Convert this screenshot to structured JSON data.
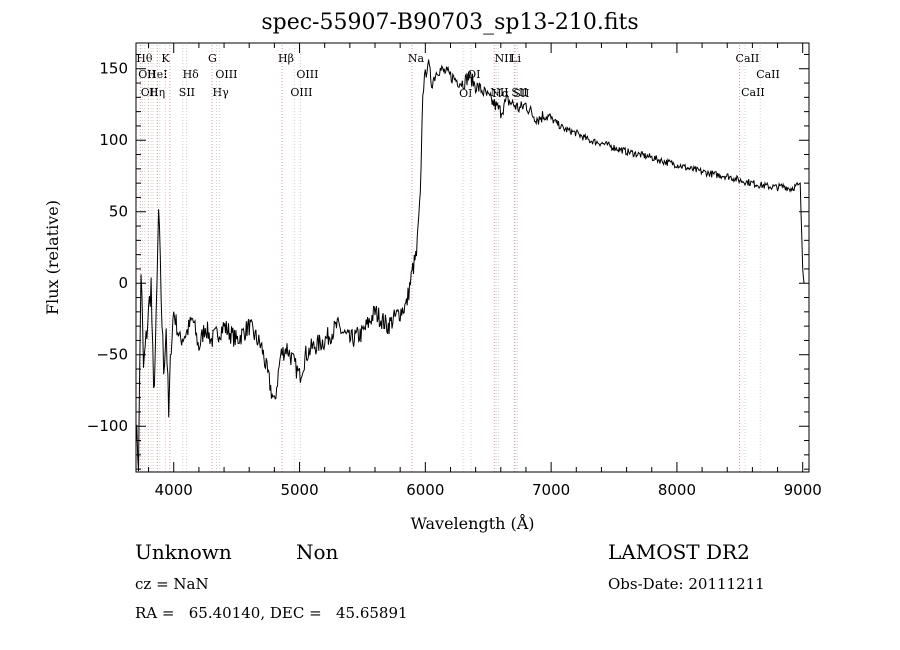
{
  "chart_data": {
    "type": "line",
    "title": "spec-55907-B90703_sp13-210.fits",
    "xlabel": "Wavelength (Å)",
    "ylabel": "Flux (relative)",
    "xlim": [
      3700,
      9050
    ],
    "ylim": [
      -132,
      168
    ],
    "xticks": [
      4000,
      5000,
      6000,
      7000,
      8000,
      9000
    ],
    "yticks": [
      -100,
      -50,
      0,
      50,
      100,
      150
    ],
    "series": [
      {
        "x": [
          3700,
          3720,
          3740,
          3760,
          3780,
          3800,
          3820,
          3840,
          3860,
          3880,
          3900,
          3920,
          3940,
          3960,
          3980,
          4000,
          4050,
          4100,
          4150,
          4200,
          4250,
          4300,
          4350,
          4400,
          4500,
          4600,
          4700,
          4800,
          4850,
          4900,
          4950,
          5000,
          5050,
          5100,
          5200,
          5300,
          5400,
          5500,
          5600,
          5700,
          5800,
          5850,
          5900,
          5930,
          5960,
          5980,
          6000,
          6020,
          6050,
          6100,
          6150,
          6200,
          6250,
          6300,
          6350,
          6400,
          6450,
          6500,
          6550,
          6600,
          6650,
          6700,
          6750,
          6800,
          6850,
          6900,
          6950,
          7000,
          7100,
          7200,
          7300,
          7400,
          7500,
          7600,
          7700,
          7800,
          7900,
          8000,
          8100,
          8200,
          8300,
          8400,
          8500,
          8600,
          8700,
          8800,
          8850,
          8900,
          8950,
          8980,
          9000,
          9010
        ],
        "y": [
          -100,
          -125,
          10,
          -60,
          -40,
          -20,
          0,
          -80,
          -30,
          50,
          -10,
          -60,
          -30,
          -95,
          -40,
          -20,
          -40,
          -35,
          -25,
          -45,
          -30,
          -40,
          -35,
          -30,
          -40,
          -30,
          -45,
          -85,
          -50,
          -45,
          -55,
          -65,
          -50,
          -45,
          -40,
          -30,
          -40,
          -35,
          -20,
          -30,
          -20,
          -15,
          10,
          20,
          60,
          135,
          145,
          155,
          140,
          150,
          148,
          145,
          142,
          140,
          145,
          138,
          135,
          130,
          125,
          120,
          128,
          125,
          122,
          125,
          118,
          115,
          118,
          115,
          108,
          105,
          100,
          98,
          95,
          92,
          90,
          88,
          85,
          83,
          80,
          78,
          76,
          75,
          72,
          70,
          68,
          67,
          68,
          66,
          68,
          70,
          10,
          0
        ]
      }
    ],
    "lines": [
      {
        "x": 3734,
        "label": "Hθ",
        "row": 0
      },
      {
        "x": 3750,
        "label": "OII",
        "row": 1
      },
      {
        "x": 3770,
        "label": "OII",
        "row": 2
      },
      {
        "x": 3798,
        "label": "",
        "row": 0
      },
      {
        "x": 3820,
        "label": "HeI",
        "row": 1
      },
      {
        "x": 3835,
        "label": "Hη",
        "row": 2
      },
      {
        "x": 3869,
        "label": "",
        "row": 0
      },
      {
        "x": 3889,
        "label": "",
        "row": 1
      },
      {
        "x": 3934,
        "label": "K",
        "row": 0
      },
      {
        "x": 3969,
        "label": "",
        "row": 0
      },
      {
        "x": 4072,
        "label": "SII",
        "row": 2
      },
      {
        "x": 4102,
        "label": "Hδ",
        "row": 1
      },
      {
        "x": 4304,
        "label": "G",
        "row": 0
      },
      {
        "x": 4340,
        "label": "Hγ",
        "row": 2
      },
      {
        "x": 4363,
        "label": "OIII",
        "row": 1
      },
      {
        "x": 4861,
        "label": "Hβ",
        "row": 0
      },
      {
        "x": 4959,
        "label": "OIII",
        "row": 2
      },
      {
        "x": 5007,
        "label": "OIII",
        "row": 1
      },
      {
        "x": 5893,
        "label": "Na",
        "row": 0
      },
      {
        "x": 6300,
        "label": "OI",
        "row": 3
      },
      {
        "x": 6364,
        "label": "OI",
        "row": 1
      },
      {
        "x": 6548,
        "label": "NII",
        "row": 2
      },
      {
        "x": 6563,
        "label": "Hα",
        "row": 3
      },
      {
        "x": 6583,
        "label": "NII",
        "row": 0
      },
      {
        "x": 6707,
        "label": "Li",
        "row": 0
      },
      {
        "x": 6716,
        "label": "SII",
        "row": 2
      },
      {
        "x": 6731,
        "label": "SII",
        "row": 3
      },
      {
        "x": 8498,
        "label": "CaII",
        "row": 0
      },
      {
        "x": 8542,
        "label": "CaII",
        "row": 2
      },
      {
        "x": 8662,
        "label": "CaII",
        "row": 1
      }
    ]
  },
  "info": {
    "class": "Unknown",
    "subclass": "Non",
    "cz": "cz = NaN",
    "coords": "RA =   65.40140, DEC =   45.65891",
    "survey": "LAMOST DR2",
    "obs_date": "Obs-Date: 20111211"
  },
  "colors": {
    "ink": "#000000",
    "marker_line": "#d0d0d0",
    "marker_line_red": "#d99a9a"
  }
}
